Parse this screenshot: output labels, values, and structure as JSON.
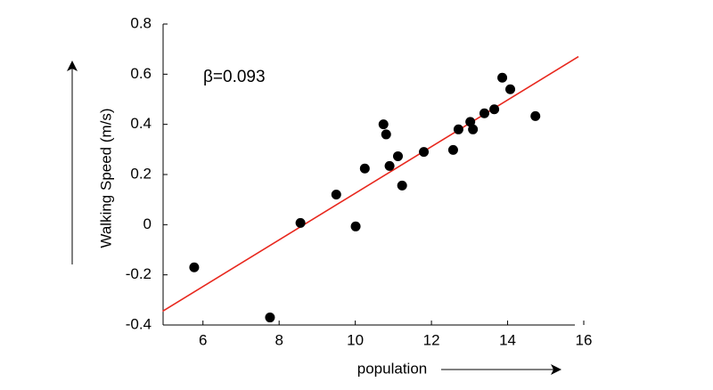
{
  "chart_data": {
    "type": "scatter",
    "annotation": "β=0.093",
    "x_label": "population",
    "y_label": "Walking Speed (m/s)",
    "xlim": [
      5,
      16
    ],
    "ylim": [
      -0.4,
      0.8
    ],
    "xticks": [
      6,
      8,
      10,
      12,
      14,
      16
    ],
    "yticks": [
      -0.4,
      -0.2,
      0,
      0.2,
      0.4,
      0.6,
      0.8
    ],
    "points": {
      "color": "#000000",
      "x": [
        5.77,
        7.76,
        8.56,
        9.5,
        10.01,
        10.25,
        10.74,
        10.81,
        10.9,
        11.12,
        11.23,
        11.8,
        12.57,
        12.71,
        13.02,
        13.09,
        13.39,
        13.65,
        13.86,
        14.07,
        14.73
      ],
      "y": [
        -0.17,
        -0.37,
        0.007,
        0.12,
        -0.007,
        0.224,
        0.4,
        0.36,
        0.234,
        0.273,
        0.156,
        0.29,
        0.298,
        0.38,
        0.41,
        0.38,
        0.444,
        0.46,
        0.586,
        0.54,
        0.433
      ]
    },
    "fit": {
      "color": "#e8281e",
      "x": [
        4.94,
        15.86
      ],
      "y": [
        -0.345,
        0.67
      ]
    }
  }
}
